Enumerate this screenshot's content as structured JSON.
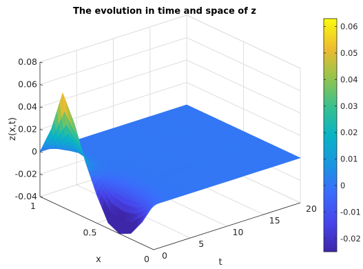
{
  "chart_data": {
    "type": "surface",
    "title": "The evolution in time and space of z",
    "xlabel": "x",
    "tlabel": "t",
    "zlabel": "z(x,t)",
    "x_range": [
      0,
      1
    ],
    "t_range": [
      0,
      20
    ],
    "z_range": [
      -0.04,
      0.08
    ],
    "x_ticks": [
      "0",
      "0.5",
      "1"
    ],
    "t_ticks": [
      "0",
      "5",
      "10",
      "15",
      "20"
    ],
    "z_ticks": [
      "-0.04",
      "-0.02",
      "0",
      "0.02",
      "0.04",
      "0.06",
      "0.08"
    ],
    "grid": true,
    "colormap": "parula",
    "colorbar": {
      "range": [
        -0.025,
        0.063
      ],
      "ticks": [
        "-0.02",
        "-0.01",
        "0",
        "0.01",
        "0.02",
        "0.03",
        "0.04",
        "0.05",
        "0.06"
      ]
    },
    "surface_profile": {
      "description_of_values": "z(x,t) sampled at the initial time and decaying to 0 for later t",
      "x": [
        0,
        0.1,
        0.2,
        0.3,
        0.4,
        0.5,
        0.6,
        0.7,
        0.8,
        0.9,
        1.0
      ],
      "z_at_t0": [
        0.0,
        -0.02,
        -0.035,
        -0.04,
        -0.035,
        -0.015,
        0.01,
        0.04,
        0.062,
        0.025,
        0.0
      ],
      "z_late_t": 0.0
    }
  }
}
